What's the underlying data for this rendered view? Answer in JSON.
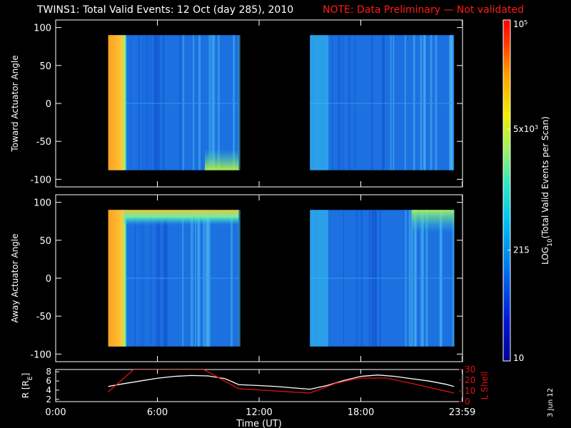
{
  "title": {
    "main": "TWINS1: Total Valid Events: 12 Oct (day 285), 2010",
    "note": "NOTE: Data Preliminary — Not validated"
  },
  "date_stamp": "3 Jun 12",
  "colors": {
    "background": "#000000",
    "foreground": "#ffffff",
    "note": "#ff1a1a",
    "radius_line": "#ffffff",
    "lshell_line": "#e01010"
  },
  "chart_data": [
    {
      "type": "heatmap",
      "panel": "toward",
      "ylabel": "Toward Actuator Angle",
      "ylim": [
        -110,
        110
      ],
      "yticks": [
        100,
        50,
        0,
        -50,
        -100
      ],
      "ytick_labels": [
        "100",
        "50",
        "0",
        "-50",
        "-100"
      ],
      "xlim_hours": [
        0,
        24
      ],
      "data_intervals_hours": [
        [
          3.1,
          10.8
        ],
        [
          15.0,
          23.5
        ]
      ],
      "angle_range": [
        -88,
        90
      ],
      "colormap": "rainbow",
      "features": [
        {
          "time_range": [
            3.1,
            4.0
          ],
          "level": 0.78,
          "note": "bright orange band at start of interval"
        },
        {
          "time_range": [
            8.8,
            10.8
          ],
          "angle_range": [
            -88,
            -60
          ],
          "level": 0.6
        }
      ]
    },
    {
      "type": "heatmap",
      "panel": "away",
      "ylabel": "Away Actuator Angle",
      "ylim": [
        -110,
        110
      ],
      "yticks": [
        100,
        50,
        0,
        -50,
        -100
      ],
      "ytick_labels": [
        "100",
        "50",
        "0",
        "-50",
        "-100"
      ],
      "xlim_hours": [
        0,
        24
      ],
      "data_intervals_hours": [
        [
          3.1,
          10.8
        ],
        [
          15.0,
          23.5
        ]
      ],
      "angle_range": [
        -90,
        90
      ],
      "colormap": "rainbow",
      "features": [
        {
          "time_range": [
            3.1,
            4.0
          ],
          "level": 0.78
        },
        {
          "time_range": [
            4.0,
            10.8
          ],
          "angle_range": [
            70,
            90
          ],
          "level": 0.6
        },
        {
          "time_range": [
            21.0,
            23.5
          ],
          "angle_range": [
            60,
            90
          ],
          "level": 0.6
        }
      ]
    },
    {
      "type": "line",
      "panel": "orbit",
      "ylabel": "R [R",
      "ylabel_subscript": "E",
      "ylabel_close": "]",
      "ylim": [
        1.5,
        8.5
      ],
      "yticks": [
        2,
        4,
        6,
        8
      ],
      "ytick_labels": [
        "2",
        "4",
        "6",
        "8"
      ],
      "y2label": "L Shell",
      "y2lim": [
        0,
        30
      ],
      "y2ticks": [
        0,
        10,
        20,
        30
      ],
      "y2tick_labels": [
        "0",
        "10",
        "20",
        "30"
      ],
      "xlabel": "Time (UT)",
      "xlim_hours": [
        0,
        24
      ],
      "xticks_hours": [
        0,
        6,
        12,
        18,
        23.983
      ],
      "xtick_labels": [
        "0:00",
        "6:00",
        "12:00",
        "18:00",
        "23:59"
      ],
      "series": [
        {
          "axis": "left",
          "x": [
            3.1,
            4,
            5,
            6,
            7,
            8,
            9,
            10,
            10.8,
            12,
            13,
            14,
            15,
            16,
            17,
            18,
            19,
            20,
            21,
            22,
            23,
            23.5
          ],
          "y": [
            4.8,
            5.4,
            6.0,
            6.6,
            7.0,
            7.2,
            7.1,
            6.5,
            5.2,
            5.0,
            4.8,
            4.5,
            4.2,
            5.0,
            6.1,
            7.0,
            7.3,
            7.0,
            6.5,
            6.0,
            5.3,
            4.8
          ]
        },
        {
          "axis": "right",
          "x": [
            3.1,
            4.6,
            4.63,
            8.7,
            8.73,
            10.8,
            15.0,
            16.5,
            18.0,
            19.5,
            21.0,
            23.5
          ],
          "y": [
            9,
            30,
            30,
            30,
            30,
            12,
            8,
            17,
            22,
            22,
            17,
            8
          ]
        }
      ]
    },
    {
      "type": "colorbar",
      "label_prefix": "LOG",
      "label_subscript": "10",
      "label_suffix": "(Total Valid Events per Scan)",
      "tick_labels": [
        {
          "base": "10",
          "exp": "5",
          "frac": 0.0
        },
        {
          "base": "5x10",
          "exp": "3",
          "frac": 0.32
        },
        {
          "base": "215",
          "exp": "",
          "frac": 0.675
        },
        {
          "base": "10",
          "exp": "",
          "frac": 1.0
        }
      ]
    }
  ]
}
